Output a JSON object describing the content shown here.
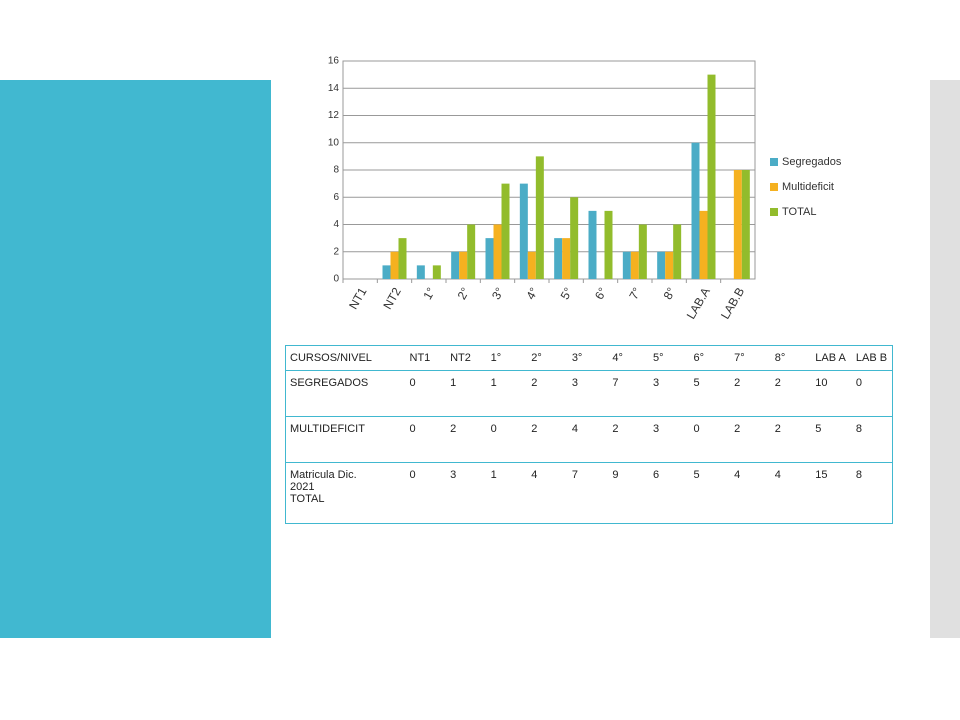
{
  "chart_data": {
    "type": "bar",
    "categories": [
      "NT1",
      "NT2",
      "1°",
      "2°",
      "3°",
      "4°",
      "5°",
      "6°",
      "7°",
      "8°",
      "LAB.A",
      "LAB.B"
    ],
    "series": [
      {
        "name": "Segregados",
        "color": "#4bacc6",
        "values": [
          0,
          1,
          1,
          2,
          3,
          7,
          3,
          5,
          2,
          2,
          10,
          0
        ]
      },
      {
        "name": "Multideficit",
        "color": "#f5b120",
        "values": [
          0,
          2,
          0,
          2,
          4,
          2,
          3,
          0,
          2,
          2,
          5,
          8
        ]
      },
      {
        "name": "TOTAL",
        "color": "#92bc2c",
        "values": [
          0,
          3,
          1,
          4,
          7,
          9,
          6,
          5,
          4,
          4,
          15,
          8
        ]
      }
    ],
    "ylim": [
      0,
      16
    ],
    "yticks": [
      0,
      2,
      4,
      6,
      8,
      10,
      12,
      14,
      16
    ],
    "grid": true,
    "legend": "right"
  },
  "table": {
    "header": [
      "CURSOS/NIVEL",
      "NT1",
      "NT2",
      "1°",
      "2°",
      "3°",
      "4°",
      "5°",
      "6°",
      "7°",
      "8°",
      "LAB A",
      "LAB B"
    ],
    "rows": [
      "SEGREGADOS",
      "MULTIDEFICIT",
      "Matricula Dic.\n2021\nTOTAL"
    ]
  }
}
